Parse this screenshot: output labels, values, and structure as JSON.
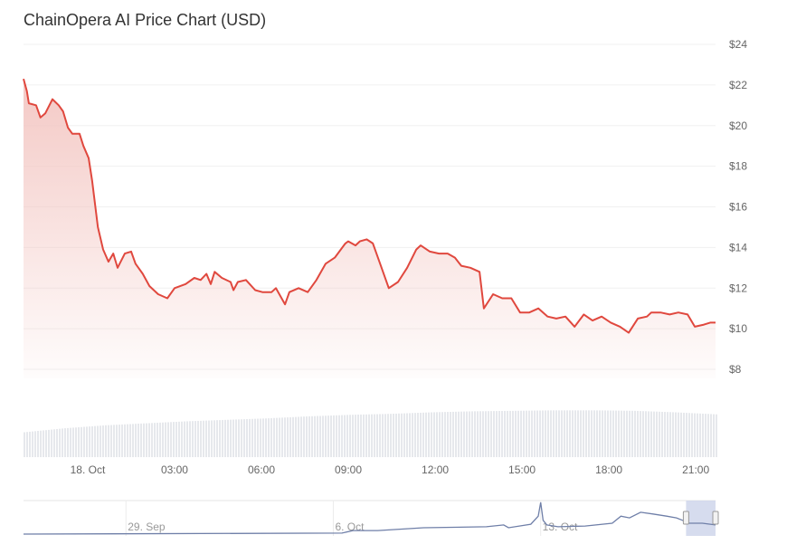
{
  "chart_data": {
    "type": "area",
    "title": "ChainOpera AI Price Chart (USD)",
    "xlabel": "",
    "ylabel": "",
    "ylim": [
      8,
      24
    ],
    "y_ticks": [
      "$8",
      "$10",
      "$12",
      "$14",
      "$16",
      "$18",
      "$20",
      "$22",
      "$24"
    ],
    "y_tick_values": [
      8,
      10,
      12,
      14,
      16,
      18,
      20,
      22,
      24
    ],
    "x_ticks": [
      {
        "label": "18. Oct",
        "time": "18 Oct 00:00"
      },
      {
        "label": "03:00",
        "time": "18 Oct 03:00"
      },
      {
        "label": "06:00",
        "time": "18 Oct 06:00"
      },
      {
        "label": "09:00",
        "time": "18 Oct 09:00"
      },
      {
        "label": "12:00",
        "time": "18 Oct 12:00"
      },
      {
        "label": "15:00",
        "time": "18 Oct 15:00"
      },
      {
        "label": "18:00",
        "time": "18 Oct 18:00"
      },
      {
        "label": "21:00",
        "time": "18 Oct 21:00"
      }
    ],
    "grid": true,
    "line_color": "#e0483e",
    "fill_color": "#f3c6c2",
    "series": [
      {
        "x": [
          "17 Oct 21:47",
          "17 Oct 21:54",
          "17 Oct 21:58",
          "17 Oct 22:13",
          "17 Oct 22:22",
          "17 Oct 22:32",
          "17 Oct 22:47",
          "17 Oct 23:00",
          "17 Oct 23:09",
          "17 Oct 23:19",
          "17 Oct 23:28",
          "17 Oct 23:43",
          "17 Oct 23:51",
          "18 Oct 00:02",
          "18 Oct 00:09",
          "18 Oct 00:21",
          "18 Oct 00:32",
          "18 Oct 00:43",
          "18 Oct 00:53",
          "18 Oct 01:02",
          "18 Oct 01:17",
          "18 Oct 01:30",
          "18 Oct 01:39",
          "18 Oct 01:54",
          "18 Oct 02:08",
          "18 Oct 02:26",
          "18 Oct 02:45",
          "18 Oct 03:00",
          "18 Oct 03:23",
          "18 Oct 03:41",
          "18 Oct 03:54",
          "18 Oct 04:06",
          "18 Oct 04:15",
          "18 Oct 04:23",
          "18 Oct 04:38",
          "18 Oct 04:56",
          "18 Oct 05:02",
          "18 Oct 05:11",
          "18 Oct 05:28",
          "18 Oct 05:47",
          "18 Oct 06:02",
          "18 Oct 06:21",
          "18 Oct 06:30",
          "18 Oct 06:49",
          "18 Oct 06:58",
          "18 Oct 07:17",
          "18 Oct 07:36",
          "18 Oct 07:54",
          "18 Oct 08:13",
          "18 Oct 08:32",
          "18 Oct 08:54",
          "18 Oct 09:00",
          "18 Oct 09:15",
          "18 Oct 09:24",
          "18 Oct 09:38",
          "18 Oct 09:51",
          "18 Oct 10:06",
          "18 Oct 10:24",
          "18 Oct 10:43",
          "18 Oct 11:02",
          "18 Oct 11:21",
          "18 Oct 11:30",
          "18 Oct 11:49",
          "18 Oct 12:08",
          "18 Oct 12:26",
          "18 Oct 12:41",
          "18 Oct 12:54",
          "18 Oct 13:13",
          "18 Oct 13:32",
          "18 Oct 13:41",
          "18 Oct 14:00",
          "18 Oct 14:19",
          "18 Oct 14:38",
          "18 Oct 14:56",
          "18 Oct 15:15",
          "18 Oct 15:34",
          "18 Oct 15:53",
          "18 Oct 16:11",
          "18 Oct 16:30",
          "18 Oct 16:49",
          "18 Oct 17:08",
          "18 Oct 17:26",
          "18 Oct 17:45",
          "18 Oct 18:04",
          "18 Oct 18:23",
          "18 Oct 18:41",
          "18 Oct 19:00",
          "18 Oct 19:19",
          "18 Oct 19:28",
          "18 Oct 19:47",
          "18 Oct 20:06",
          "18 Oct 20:24",
          "18 Oct 20:43",
          "18 Oct 20:58",
          "18 Oct 21:17",
          "18 Oct 21:30",
          "18 Oct 21:41"
        ],
        "y": [
          22.3,
          21.7,
          21.1,
          21.0,
          20.4,
          20.6,
          21.3,
          21.0,
          20.7,
          19.9,
          19.6,
          19.6,
          19.0,
          18.4,
          17.3,
          15.0,
          13.9,
          13.3,
          13.7,
          13.0,
          13.7,
          13.8,
          13.2,
          12.7,
          12.1,
          11.7,
          11.5,
          12.0,
          12.2,
          12.5,
          12.4,
          12.7,
          12.2,
          12.8,
          12.5,
          12.3,
          11.9,
          12.3,
          12.4,
          11.9,
          11.8,
          11.8,
          12.0,
          11.2,
          11.8,
          12.0,
          11.8,
          12.4,
          13.2,
          13.5,
          14.2,
          14.3,
          14.1,
          14.3,
          14.4,
          14.2,
          13.2,
          12.0,
          12.3,
          13.0,
          13.9,
          14.1,
          13.8,
          13.7,
          13.7,
          13.5,
          13.1,
          13.0,
          12.8,
          11.0,
          11.7,
          11.5,
          11.5,
          10.8,
          10.8,
          11.0,
          10.6,
          10.5,
          10.6,
          10.1,
          10.7,
          10.4,
          10.6,
          10.3,
          10.1,
          9.8,
          10.5,
          10.6,
          10.8,
          10.8,
          10.7,
          10.8,
          10.7,
          10.1,
          10.2,
          10.3,
          10.3
        ]
      }
    ],
    "volume_color": "#e6e8ec",
    "volume_relative": [
      0.5,
      0.58,
      0.64,
      0.68,
      0.72,
      0.75,
      0.78,
      0.82,
      0.85,
      0.87,
      0.9,
      0.92,
      0.93,
      0.94,
      0.94,
      0.93,
      0.9,
      0.86
    ],
    "navigator": {
      "ticks": [
        {
          "label": "29. Sep",
          "time": "29 Sep 00:00"
        },
        {
          "label": "6. Oct",
          "time": "6 Oct 00:00"
        },
        {
          "label": "13. Oct",
          "time": "13 Oct 00:00"
        }
      ],
      "line_color": "#6f7fa8",
      "selection_color": "#ccd3ea",
      "x": [
        "25 Sep 13:00",
        "6 Oct 07:00",
        "6 Oct 16:00",
        "7 Oct 12:00",
        "9 Oct 01:00",
        "11 Oct 04:00",
        "11 Oct 18:00",
        "11 Oct 22:00",
        "12 Oct 16:00",
        "12 Oct 22:00",
        "13 Oct 00:00",
        "13 Oct 02:00",
        "13 Oct 05:00",
        "13 Oct 14:00",
        "14 Oct 12:00",
        "15 Oct 10:00",
        "15 Oct 17:00",
        "16 Oct 00:00",
        "16 Oct 09:00",
        "16 Oct 19:00",
        "17 Oct 06:00",
        "17 Oct 14:00",
        "17 Oct 19:00",
        "18 Oct 00:00",
        "18 Oct 11:00",
        "18 Oct 21:41"
      ],
      "level": [
        0.05,
        0.08,
        0.15,
        0.15,
        0.23,
        0.26,
        0.31,
        0.23,
        0.33,
        0.56,
        0.95,
        0.44,
        0.31,
        0.26,
        0.28,
        0.36,
        0.56,
        0.51,
        0.67,
        0.62,
        0.56,
        0.51,
        0.44,
        0.36,
        0.36,
        0.31
      ]
    }
  }
}
